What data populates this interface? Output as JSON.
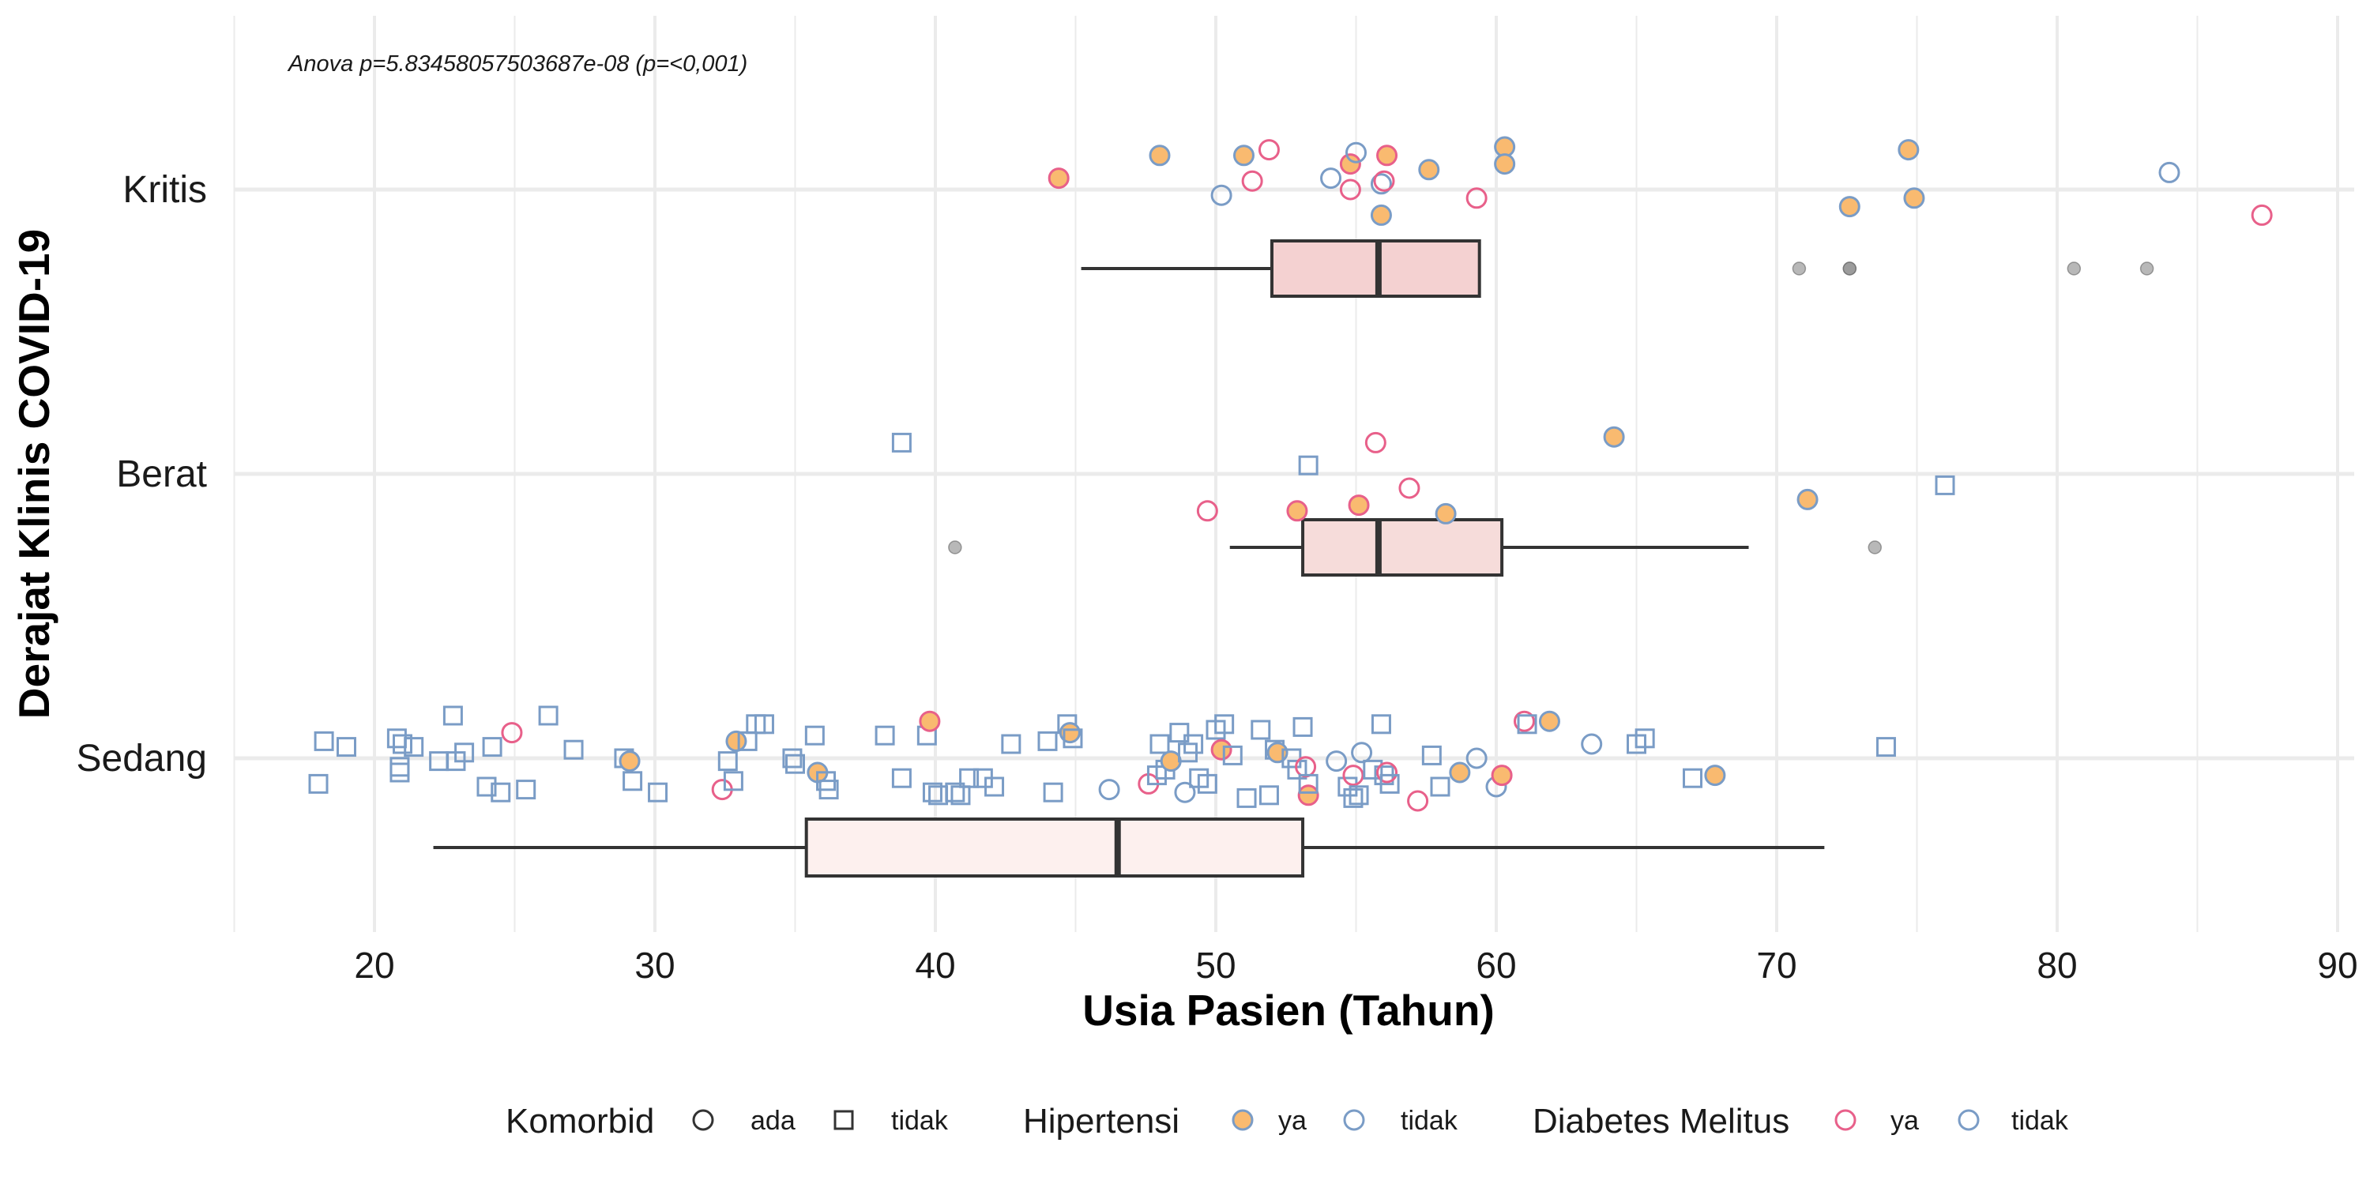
{
  "chart_data": {
    "type": "box-jitter",
    "annotation": "Anova p=5.83458057503687e-08 (p=<0,001)",
    "xlabel": "Usia Pasien (Tahun)",
    "ylabel": "Derajat Klinis COVID-19",
    "xlim": [
      15,
      91
    ],
    "x_ticks": [
      20,
      30,
      40,
      50,
      60,
      70,
      80,
      90
    ],
    "categories": [
      "Kritis",
      "Berat",
      "Sedang"
    ],
    "grid": true,
    "legend": {
      "placement": "bottom",
      "groups": [
        {
          "title": "Komorbid",
          "entries": [
            {
              "label": "ada",
              "shape": "circle"
            },
            {
              "label": "tidak",
              "shape": "square"
            }
          ]
        },
        {
          "title": "Hipertensi",
          "entries": [
            {
              "label": "ya",
              "fill": "#F9BA70",
              "stroke": "#7A9CC6"
            },
            {
              "label": "tidak",
              "fill": "none",
              "stroke": "#7A9CC6"
            }
          ]
        },
        {
          "title": "Diabetes Melitus",
          "entries": [
            {
              "label": "ya",
              "stroke": "#E8608A"
            },
            {
              "label": "tidak",
              "stroke": "#7A9CC6"
            }
          ]
        }
      ]
    },
    "colors": {
      "hipertensi_ya_fill": "#F9BA70",
      "dm_ya_stroke": "#E8608A",
      "dm_tidak_stroke": "#7A9CC6",
      "outlier": "#888888",
      "box_stroke": "#333333"
    },
    "boxes": [
      {
        "category": "Kritis",
        "min": 45.2,
        "q1": 52.0,
        "median": 55.8,
        "q3": 59.4,
        "max": 59.4,
        "fill": "#F4D1D1",
        "outliers": [
          70.8,
          72.6,
          72.6,
          80.6,
          83.2
        ]
      },
      {
        "category": "Berat",
        "min": 50.5,
        "q1": 53.1,
        "median": 55.8,
        "q3": 60.2,
        "max": 69.0,
        "fill": "#F6DCDA",
        "outliers": [
          40.7,
          73.5
        ]
      },
      {
        "category": "Sedang",
        "min": 22.1,
        "q1": 35.4,
        "median": 46.5,
        "q3": 53.1,
        "max": 71.7,
        "fill": "#FDF0EE",
        "outliers": []
      }
    ],
    "points": {
      "Kritis": [
        {
          "x": 44.4,
          "j": 0.04,
          "hip": true,
          "dm": true
        },
        {
          "x": 48.0,
          "j": 0.12,
          "hip": true,
          "dm": false
        },
        {
          "x": 51.0,
          "j": 0.12,
          "hip": true,
          "dm": false
        },
        {
          "x": 51.3,
          "j": 0.03,
          "hip": false,
          "dm": true
        },
        {
          "x": 51.9,
          "j": 0.14,
          "hip": false,
          "dm": true
        },
        {
          "x": 50.2,
          "j": -0.02,
          "hip": false,
          "dm": false
        },
        {
          "x": 54.1,
          "j": 0.04,
          "hip": false,
          "dm": false
        },
        {
          "x": 54.8,
          "j": 0.09,
          "hip": true,
          "dm": true
        },
        {
          "x": 54.8,
          "j": 0.0,
          "hip": false,
          "dm": true
        },
        {
          "x": 55.0,
          "j": 0.13,
          "hip": false,
          "dm": false
        },
        {
          "x": 55.9,
          "j": 0.02,
          "hip": false,
          "dm": false
        },
        {
          "x": 56.0,
          "j": 0.03,
          "hip": false,
          "dm": true
        },
        {
          "x": 56.1,
          "j": 0.12,
          "hip": true,
          "dm": true
        },
        {
          "x": 55.9,
          "j": -0.09,
          "hip": true,
          "dm": false
        },
        {
          "x": 57.6,
          "j": 0.07,
          "hip": true,
          "dm": false
        },
        {
          "x": 59.3,
          "j": -0.03,
          "hip": false,
          "dm": true
        },
        {
          "x": 60.3,
          "j": 0.15,
          "hip": true,
          "dm": false
        },
        {
          "x": 60.3,
          "j": 0.09,
          "hip": true,
          "dm": false
        },
        {
          "x": 72.6,
          "j": -0.06,
          "hip": true,
          "dm": false
        },
        {
          "x": 74.7,
          "j": 0.14,
          "hip": true,
          "dm": false
        },
        {
          "x": 74.9,
          "j": -0.03,
          "hip": true,
          "dm": false
        },
        {
          "x": 84.0,
          "j": 0.06,
          "hip": false,
          "dm": false
        },
        {
          "x": 87.3,
          "j": -0.09,
          "hip": false,
          "dm": true
        }
      ],
      "Berat": [
        {
          "x": 38.8,
          "j": 0.11,
          "sq": true
        },
        {
          "x": 49.7,
          "j": -0.13,
          "hip": false,
          "dm": true
        },
        {
          "x": 52.9,
          "j": -0.13,
          "hip": true,
          "dm": true
        },
        {
          "x": 53.3,
          "j": 0.03,
          "sq": true
        },
        {
          "x": 55.1,
          "j": -0.11,
          "hip": true,
          "dm": true
        },
        {
          "x": 55.7,
          "j": 0.11,
          "hip": false,
          "dm": true
        },
        {
          "x": 56.9,
          "j": -0.05,
          "hip": false,
          "dm": true
        },
        {
          "x": 58.2,
          "j": -0.14,
          "hip": true,
          "dm": false
        },
        {
          "x": 64.2,
          "j": 0.13,
          "hip": true,
          "dm": false
        },
        {
          "x": 71.1,
          "j": -0.09,
          "hip": true,
          "dm": false
        },
        {
          "x": 76.0,
          "j": -0.04,
          "sq": true
        }
      ],
      "Sedang": [
        {
          "x": 18.0,
          "j": -0.09,
          "sq": true
        },
        {
          "x": 18.2,
          "j": 0.06,
          "sq": true
        },
        {
          "x": 19.0,
          "j": 0.04,
          "sq": true
        },
        {
          "x": 20.8,
          "j": 0.07,
          "sq": true
        },
        {
          "x": 20.9,
          "j": -0.03,
          "sq": true
        },
        {
          "x": 20.9,
          "j": -0.05,
          "sq": true
        },
        {
          "x": 21.0,
          "j": 0.05,
          "sq": true
        },
        {
          "x": 21.4,
          "j": 0.04,
          "sq": true
        },
        {
          "x": 22.3,
          "j": -0.01,
          "sq": true
        },
        {
          "x": 22.9,
          "j": -0.01,
          "sq": true
        },
        {
          "x": 22.8,
          "j": 0.15,
          "sq": true
        },
        {
          "x": 23.2,
          "j": 0.02,
          "sq": true
        },
        {
          "x": 24.0,
          "j": -0.1,
          "sq": true
        },
        {
          "x": 24.2,
          "j": 0.04,
          "sq": true
        },
        {
          "x": 24.5,
          "j": -0.12,
          "sq": true
        },
        {
          "x": 24.9,
          "j": 0.09,
          "hip": false,
          "dm": true
        },
        {
          "x": 25.4,
          "j": -0.11,
          "sq": true
        },
        {
          "x": 26.2,
          "j": 0.15,
          "sq": true
        },
        {
          "x": 27.1,
          "j": 0.03,
          "sq": true
        },
        {
          "x": 28.9,
          "j": 0.0,
          "sq": true
        },
        {
          "x": 29.1,
          "j": -0.01,
          "hip": true,
          "dm": false
        },
        {
          "x": 29.2,
          "j": -0.08,
          "sq": true
        },
        {
          "x": 30.1,
          "j": -0.12,
          "sq": true
        },
        {
          "x": 32.4,
          "j": -0.11,
          "hip": false,
          "dm": true
        },
        {
          "x": 32.6,
          "j": -0.01,
          "sq": true
        },
        {
          "x": 32.8,
          "j": -0.08,
          "sq": true
        },
        {
          "x": 32.9,
          "j": 0.06,
          "hip": true,
          "dm": false
        },
        {
          "x": 33.3,
          "j": 0.06,
          "sq": true
        },
        {
          "x": 33.6,
          "j": 0.12,
          "sq": true
        },
        {
          "x": 33.9,
          "j": 0.12,
          "sq": true
        },
        {
          "x": 34.9,
          "j": 0.0,
          "sq": true
        },
        {
          "x": 35.0,
          "j": -0.02,
          "sq": true
        },
        {
          "x": 35.7,
          "j": 0.08,
          "sq": true
        },
        {
          "x": 35.8,
          "j": -0.05,
          "hip": true,
          "dm": false
        },
        {
          "x": 36.1,
          "j": -0.08,
          "sq": true
        },
        {
          "x": 36.2,
          "j": -0.11,
          "sq": true
        },
        {
          "x": 38.2,
          "j": 0.08,
          "sq": true
        },
        {
          "x": 38.8,
          "j": -0.07,
          "sq": true
        },
        {
          "x": 39.7,
          "j": 0.08,
          "sq": true
        },
        {
          "x": 39.8,
          "j": 0.13,
          "hip": true,
          "dm": true
        },
        {
          "x": 39.9,
          "j": -0.12,
          "sq": true
        },
        {
          "x": 40.1,
          "j": -0.13,
          "sq": true
        },
        {
          "x": 40.7,
          "j": -0.12,
          "sq": true
        },
        {
          "x": 40.9,
          "j": -0.13,
          "sq": true
        },
        {
          "x": 41.2,
          "j": -0.07,
          "sq": true
        },
        {
          "x": 41.7,
          "j": -0.07,
          "sq": true
        },
        {
          "x": 42.1,
          "j": -0.1,
          "sq": true
        },
        {
          "x": 42.7,
          "j": 0.05,
          "sq": true
        },
        {
          "x": 44.0,
          "j": 0.06,
          "sq": true
        },
        {
          "x": 44.2,
          "j": -0.12,
          "sq": true
        },
        {
          "x": 44.7,
          "j": 0.12,
          "sq": true
        },
        {
          "x": 44.8,
          "j": 0.09,
          "hip": true,
          "dm": false
        },
        {
          "x": 44.9,
          "j": 0.07,
          "sq": true
        },
        {
          "x": 46.2,
          "j": -0.11,
          "hip": false,
          "dm": false
        },
        {
          "x": 47.6,
          "j": -0.09,
          "hip": false,
          "dm": true
        },
        {
          "x": 47.9,
          "j": -0.06,
          "sq": true
        },
        {
          "x": 48.0,
          "j": 0.05,
          "sq": true
        },
        {
          "x": 48.2,
          "j": -0.04,
          "sq": true
        },
        {
          "x": 48.4,
          "j": -0.01,
          "hip": true,
          "dm": false
        },
        {
          "x": 48.7,
          "j": 0.09,
          "sq": true
        },
        {
          "x": 48.9,
          "j": -0.12,
          "hip": false,
          "dm": false
        },
        {
          "x": 49.0,
          "j": 0.02,
          "sq": true
        },
        {
          "x": 49.2,
          "j": 0.05,
          "sq": true
        },
        {
          "x": 49.4,
          "j": -0.07,
          "sq": true
        },
        {
          "x": 49.7,
          "j": -0.09,
          "sq": true
        },
        {
          "x": 50.0,
          "j": 0.1,
          "sq": true
        },
        {
          "x": 50.2,
          "j": 0.03,
          "hip": true,
          "dm": true
        },
        {
          "x": 50.3,
          "j": 0.12,
          "sq": true
        },
        {
          "x": 50.6,
          "j": 0.01,
          "sq": true
        },
        {
          "x": 51.1,
          "j": -0.14,
          "sq": true
        },
        {
          "x": 51.6,
          "j": 0.1,
          "sq": true
        },
        {
          "x": 51.9,
          "j": -0.13,
          "sq": true
        },
        {
          "x": 52.1,
          "j": 0.03,
          "sq": true
        },
        {
          "x": 52.2,
          "j": 0.02,
          "hip": true,
          "dm": false
        },
        {
          "x": 52.7,
          "j": 0.0,
          "sq": true
        },
        {
          "x": 52.9,
          "j": -0.04,
          "sq": true
        },
        {
          "x": 53.1,
          "j": 0.11,
          "sq": true
        },
        {
          "x": 53.2,
          "j": -0.03,
          "hip": false,
          "dm": true
        },
        {
          "x": 53.3,
          "j": -0.13,
          "hip": true,
          "dm": true
        },
        {
          "x": 53.3,
          "j": -0.09,
          "sq": true
        },
        {
          "x": 54.3,
          "j": -0.01,
          "hip": false,
          "dm": false
        },
        {
          "x": 54.7,
          "j": -0.1,
          "sq": true
        },
        {
          "x": 54.9,
          "j": -0.06,
          "hip": false,
          "dm": true
        },
        {
          "x": 54.9,
          "j": -0.14,
          "sq": true
        },
        {
          "x": 55.1,
          "j": -0.13,
          "sq": true
        },
        {
          "x": 55.2,
          "j": 0.02,
          "hip": false,
          "dm": false
        },
        {
          "x": 55.6,
          "j": -0.04,
          "sq": true
        },
        {
          "x": 55.9,
          "j": 0.12,
          "sq": true
        },
        {
          "x": 56.0,
          "j": -0.06,
          "sq": true
        },
        {
          "x": 56.1,
          "j": -0.05,
          "hip": false,
          "dm": true
        },
        {
          "x": 56.2,
          "j": -0.09,
          "sq": true
        },
        {
          "x": 57.2,
          "j": -0.15,
          "hip": false,
          "dm": true
        },
        {
          "x": 57.7,
          "j": 0.01,
          "sq": true
        },
        {
          "x": 58.0,
          "j": -0.1,
          "sq": true
        },
        {
          "x": 58.7,
          "j": -0.05,
          "hip": true,
          "dm": false
        },
        {
          "x": 59.3,
          "j": 0.0,
          "hip": false,
          "dm": false
        },
        {
          "x": 60.0,
          "j": -0.1,
          "hip": false,
          "dm": false
        },
        {
          "x": 60.2,
          "j": -0.06,
          "hip": true,
          "dm": true
        },
        {
          "x": 61.0,
          "j": 0.13,
          "hip": false,
          "dm": true
        },
        {
          "x": 61.1,
          "j": 0.12,
          "sq": true
        },
        {
          "x": 61.9,
          "j": 0.13,
          "hip": true,
          "dm": false
        },
        {
          "x": 63.4,
          "j": 0.05,
          "hip": false,
          "dm": false
        },
        {
          "x": 65.0,
          "j": 0.05,
          "sq": true
        },
        {
          "x": 65.3,
          "j": 0.07,
          "sq": true
        },
        {
          "x": 67.0,
          "j": -0.07,
          "sq": true
        },
        {
          "x": 67.8,
          "j": -0.06,
          "hip": true,
          "dm": false
        },
        {
          "x": 73.9,
          "j": 0.04,
          "sq": true
        }
      ]
    }
  }
}
